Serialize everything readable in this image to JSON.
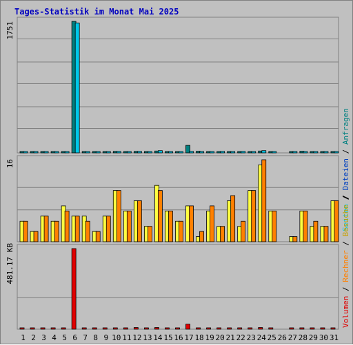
{
  "title": "Tages-Statistik im Monat Mai 2025",
  "colors": {
    "background": "#c0c0c0",
    "panel_border": "#808080",
    "grid": "#808080",
    "anfragen": "#008080",
    "dateien": "#00c8e8",
    "besuche": "#ffff40",
    "rechner": "#ff8000",
    "volumen": "#e00000",
    "weekend": "#008040",
    "title": "#0000c0"
  },
  "legend": {
    "anfragen": "Anfragen",
    "dateien": "Dateien",
    "seiten": "Seiten",
    "besuche": "Besuche",
    "rechner": "Rechner",
    "volumen": "Volumen",
    "sep": " / "
  },
  "chart_data": [
    {
      "type": "bar",
      "panel": "top",
      "ymax_label": "1751",
      "ylim": [
        0,
        1751
      ],
      "grid": true,
      "categories": [
        "1",
        "2",
        "3",
        "4",
        "5",
        "6",
        "7",
        "8",
        "9",
        "10",
        "11",
        "12",
        "13",
        "14",
        "15",
        "16",
        "17",
        "18",
        "19",
        "20",
        "21",
        "22",
        "23",
        "24",
        "25",
        "26",
        "27",
        "28",
        "29",
        "30",
        "31"
      ],
      "series": [
        {
          "name": "Anfragen",
          "values": [
            12,
            12,
            12,
            12,
            12,
            1751,
            12,
            12,
            12,
            20,
            12,
            20,
            12,
            25,
            12,
            12,
            100,
            22,
            12,
            12,
            12,
            12,
            12,
            25,
            12,
            0,
            12,
            22,
            12,
            12,
            12
          ]
        },
        {
          "name": "Dateien",
          "values": [
            10,
            10,
            10,
            10,
            10,
            1730,
            10,
            10,
            10,
            20,
            10,
            20,
            10,
            30,
            10,
            10,
            20,
            10,
            10,
            20,
            10,
            20,
            10,
            30,
            10,
            0,
            10,
            10,
            10,
            10,
            10
          ]
        }
      ]
    },
    {
      "type": "bar",
      "panel": "middle",
      "ymax_label": "16",
      "ylim": [
        0,
        16
      ],
      "grid": true,
      "categories": [
        "1",
        "2",
        "3",
        "4",
        "5",
        "6",
        "7",
        "8",
        "9",
        "10",
        "11",
        "12",
        "13",
        "14",
        "15",
        "16",
        "17",
        "18",
        "19",
        "20",
        "21",
        "22",
        "23",
        "24",
        "25",
        "26",
        "27",
        "28",
        "29",
        "30",
        "31"
      ],
      "series": [
        {
          "name": "Besuche",
          "values": [
            4,
            2,
            5,
            4,
            7,
            5,
            5,
            2,
            5,
            10,
            6,
            8,
            3,
            11,
            6,
            4,
            7,
            1,
            6,
            3,
            8,
            3,
            10,
            15,
            6,
            0,
            1,
            6,
            3,
            3,
            8
          ]
        },
        {
          "name": "Rechner",
          "values": [
            4,
            2,
            5,
            4,
            6,
            5,
            4,
            2,
            5,
            10,
            6,
            8,
            3,
            10,
            6,
            4,
            7,
            2,
            7,
            3,
            9,
            4,
            10,
            16,
            6,
            0,
            1,
            6,
            4,
            3,
            8
          ]
        }
      ]
    },
    {
      "type": "bar",
      "panel": "bottom",
      "ymax_label": "481.17 KB",
      "ylim": [
        0,
        481.17
      ],
      "grid": true,
      "categories": [
        "1",
        "2",
        "3",
        "4",
        "5",
        "6",
        "7",
        "8",
        "9",
        "10",
        "11",
        "12",
        "13",
        "14",
        "15",
        "16",
        "17",
        "18",
        "19",
        "20",
        "21",
        "22",
        "23",
        "24",
        "25",
        "26",
        "27",
        "28",
        "29",
        "30",
        "31"
      ],
      "series": [
        {
          "name": "Volumen",
          "values": [
            5,
            5,
            5,
            5,
            5,
            481.17,
            5,
            5,
            5,
            5,
            5,
            10,
            5,
            10,
            5,
            5,
            30,
            5,
            5,
            5,
            5,
            5,
            5,
            10,
            5,
            0,
            5,
            5,
            5,
            5,
            5
          ]
        }
      ]
    }
  ],
  "x_labels": [
    "1",
    "2",
    "3",
    "4",
    "5",
    "6",
    "7",
    "8",
    "9",
    "10",
    "11",
    "12",
    "13",
    "14",
    "15",
    "16",
    "17",
    "18",
    "19",
    "20",
    "21",
    "22",
    "23",
    "24",
    "25",
    "26",
    "27",
    "28",
    "29",
    "30",
    "31"
  ],
  "weekend_days": [
    "3",
    "4",
    "10",
    "11",
    "17",
    "18",
    "24",
    "25",
    "31"
  ]
}
